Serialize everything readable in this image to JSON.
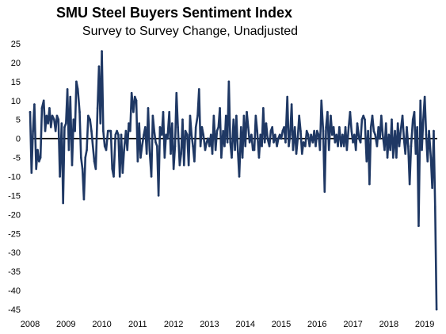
{
  "chart_data": {
    "type": "line",
    "title": "SMU Steel Buyers Sentiment Index",
    "subtitle": "Survey to Survey Change, Unadjusted",
    "xlabel": "",
    "ylabel": "",
    "ylim": [
      -45,
      25
    ],
    "yticks": [
      25,
      20,
      15,
      10,
      5,
      0,
      -5,
      -10,
      -15,
      -20,
      -25,
      -30,
      -35,
      -40,
      -45
    ],
    "xlim": [
      2008.0,
      2019.35
    ],
    "xticks": [
      "2008",
      "2009",
      "2010",
      "2011",
      "2012",
      "2013",
      "2014",
      "2015",
      "2016",
      "2017",
      "2018",
      "2019"
    ],
    "grid": false,
    "legend": "none",
    "zero_line": true,
    "series": [
      {
        "color": "#1f3864",
        "x": [
          2008.0,
          2008.04,
          2008.08,
          2008.12,
          2008.17,
          2008.21,
          2008.25,
          2008.29,
          2008.33,
          2008.38,
          2008.42,
          2008.46,
          2008.5,
          2008.54,
          2008.58,
          2008.62,
          2008.67,
          2008.71,
          2008.75,
          2008.79,
          2008.83,
          2008.88,
          2008.92,
          2008.96,
          2009.0,
          2009.04,
          2009.08,
          2009.12,
          2009.17,
          2009.21,
          2009.25,
          2009.29,
          2009.33,
          2009.38,
          2009.42,
          2009.46,
          2009.5,
          2009.54,
          2009.58,
          2009.62,
          2009.67,
          2009.71,
          2009.75,
          2009.79,
          2009.83,
          2009.88,
          2009.92,
          2009.96,
          2010.0,
          2010.04,
          2010.08,
          2010.12,
          2010.17,
          2010.21,
          2010.25,
          2010.29,
          2010.33,
          2010.38,
          2010.42,
          2010.46,
          2010.5,
          2010.54,
          2010.58,
          2010.62,
          2010.67,
          2010.71,
          2010.75,
          2010.79,
          2010.83,
          2010.88,
          2010.92,
          2010.96,
          2011.0,
          2011.04,
          2011.08,
          2011.12,
          2011.17,
          2011.21,
          2011.25,
          2011.29,
          2011.33,
          2011.38,
          2011.42,
          2011.46,
          2011.5,
          2011.54,
          2011.58,
          2011.62,
          2011.67,
          2011.71,
          2011.75,
          2011.79,
          2011.83,
          2011.88,
          2011.92,
          2011.96,
          2012.0,
          2012.04,
          2012.08,
          2012.12,
          2012.17,
          2012.21,
          2012.25,
          2012.29,
          2012.33,
          2012.38,
          2012.42,
          2012.46,
          2012.5,
          2012.54,
          2012.58,
          2012.62,
          2012.67,
          2012.71,
          2012.75,
          2012.79,
          2012.83,
          2012.88,
          2012.92,
          2012.96,
          2013.0,
          2013.04,
          2013.08,
          2013.12,
          2013.17,
          2013.21,
          2013.25,
          2013.29,
          2013.33,
          2013.38,
          2013.42,
          2013.46,
          2013.5,
          2013.54,
          2013.58,
          2013.62,
          2013.67,
          2013.71,
          2013.75,
          2013.79,
          2013.83,
          2013.88,
          2013.92,
          2013.96,
          2014.0,
          2014.04,
          2014.08,
          2014.12,
          2014.17,
          2014.21,
          2014.25,
          2014.29,
          2014.33,
          2014.38,
          2014.42,
          2014.46,
          2014.5,
          2014.54,
          2014.58,
          2014.62,
          2014.67,
          2014.71,
          2014.75,
          2014.79,
          2014.83,
          2014.88,
          2014.92,
          2014.96,
          2015.0,
          2015.04,
          2015.08,
          2015.12,
          2015.17,
          2015.21,
          2015.25,
          2015.29,
          2015.33,
          2015.38,
          2015.42,
          2015.46,
          2015.5,
          2015.54,
          2015.58,
          2015.62,
          2015.67,
          2015.71,
          2015.75,
          2015.79,
          2015.83,
          2015.88,
          2015.92,
          2015.96,
          2016.0,
          2016.04,
          2016.08,
          2016.12,
          2016.17,
          2016.21,
          2016.25,
          2016.29,
          2016.33,
          2016.38,
          2016.42,
          2016.46,
          2016.5,
          2016.54,
          2016.58,
          2016.62,
          2016.67,
          2016.71,
          2016.75,
          2016.79,
          2016.83,
          2016.88,
          2016.92,
          2016.96,
          2017.0,
          2017.04,
          2017.08,
          2017.12,
          2017.17,
          2017.21,
          2017.25,
          2017.29,
          2017.33,
          2017.38,
          2017.42,
          2017.46,
          2017.5,
          2017.54,
          2017.58,
          2017.62,
          2017.67,
          2017.71,
          2017.75,
          2017.79,
          2017.83,
          2017.88,
          2017.92,
          2017.96,
          2018.0,
          2018.04,
          2018.08,
          2018.12,
          2018.17,
          2018.21,
          2018.25,
          2018.29,
          2018.33,
          2018.38,
          2018.42,
          2018.46,
          2018.5,
          2018.54,
          2018.58,
          2018.62,
          2018.67,
          2018.71,
          2018.75,
          2018.79,
          2018.83,
          2018.88,
          2018.92,
          2018.96,
          2019.0,
          2019.04,
          2019.08,
          2019.12,
          2019.17,
          2019.21,
          2019.25,
          2019.29,
          2019.33
        ],
        "values": [
          7,
          -9,
          2,
          9,
          -8,
          -3,
          -6,
          -5,
          8,
          10,
          2,
          6,
          4,
          8,
          3,
          6,
          5,
          2,
          6,
          5,
          -10,
          4,
          -17,
          3,
          4,
          13,
          -3,
          11,
          -7,
          5,
          2,
          15,
          13,
          7,
          -5,
          -8,
          -16,
          -5,
          -3,
          6,
          5,
          2,
          -2,
          -6,
          -8,
          8,
          19,
          4,
          23,
          2,
          -2,
          -3,
          2,
          2,
          2,
          -8,
          -10,
          1,
          2,
          1,
          -10,
          1,
          -9,
          -3,
          2,
          -3,
          4,
          2,
          12,
          7,
          11,
          10,
          -6,
          4,
          -5,
          -2,
          1,
          3,
          -4,
          8,
          -3,
          -10,
          6,
          2,
          -1,
          -2,
          -15,
          3,
          1,
          7,
          -5,
          1,
          0,
          7,
          -4,
          4,
          -8,
          -2,
          12,
          3,
          -7,
          -4,
          5,
          -7,
          2,
          1,
          -7,
          6,
          1,
          -2,
          -6,
          3,
          6,
          13,
          -2,
          3,
          1,
          -3,
          -1,
          0,
          -2,
          1,
          -4,
          6,
          -3,
          2,
          3,
          8,
          -5,
          2,
          -2,
          6,
          -1,
          15,
          -1,
          -5,
          5,
          -3,
          6,
          -3,
          -10,
          3,
          -5,
          6,
          -2,
          7,
          3,
          -1,
          1,
          -3,
          -3,
          6,
          2,
          -5,
          1,
          -2,
          8,
          -1,
          4,
          0,
          -2,
          2,
          3,
          -1,
          1,
          -2,
          0,
          1,
          0,
          2,
          3,
          -1,
          11,
          -2,
          1,
          9,
          -3,
          3,
          -4,
          0,
          6,
          2,
          -4,
          -1,
          -2,
          2,
          1,
          -2,
          1,
          -1,
          2,
          -2,
          2,
          1,
          -3,
          10,
          2,
          -14,
          3,
          7,
          -3,
          6,
          1,
          3,
          -1,
          1,
          -2,
          3,
          -2,
          1,
          -2,
          3,
          -3,
          3,
          7,
          2,
          -1,
          1,
          -3,
          4,
          0,
          -1,
          5,
          6,
          5,
          -6,
          2,
          -12,
          3,
          6,
          2,
          1,
          -2,
          3,
          0,
          6,
          1,
          -3,
          4,
          -5,
          1,
          -3,
          5,
          -5,
          2,
          -5,
          4,
          -2,
          2,
          6,
          0,
          -4,
          3,
          -2,
          -12,
          -2,
          5,
          7,
          -4,
          3,
          -23,
          10,
          -3,
          5,
          11,
          1,
          -6,
          2,
          -5,
          -13,
          2,
          -18,
          -45
        ]
      }
    ]
  }
}
